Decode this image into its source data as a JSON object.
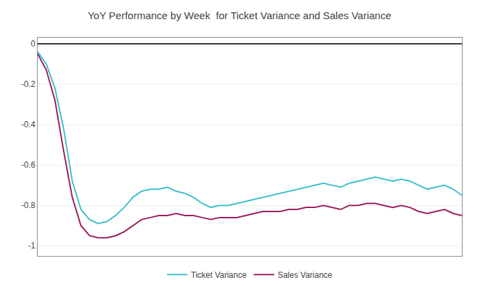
{
  "chart_data": {
    "type": "line",
    "title": "YoY Performance by Week  for Ticket Variance and Sales Variance",
    "categories": [
      null,
      null,
      null,
      null,
      null,
      null,
      null,
      null,
      null,
      null,
      null,
      null,
      null,
      null,
      null,
      null,
      null,
      null,
      null,
      null,
      null,
      null,
      null,
      null,
      null,
      null,
      null,
      null,
      null,
      null,
      null,
      null,
      null,
      null,
      null,
      null,
      null,
      null,
      null,
      null,
      null,
      null,
      null,
      null,
      null,
      null,
      null,
      null,
      null,
      null
    ],
    "series": [
      {
        "name": "Ticket Variance",
        "color": "#3BBFC8",
        "values": [
          -0.04,
          -0.1,
          -0.22,
          -0.42,
          -0.68,
          -0.82,
          -0.87,
          -0.89,
          -0.88,
          -0.85,
          -0.81,
          -0.76,
          -0.73,
          -0.72,
          -0.72,
          -0.71,
          -0.73,
          -0.74,
          -0.76,
          -0.79,
          -0.81,
          -0.8,
          -0.8,
          -0.79,
          -0.78,
          -0.77,
          -0.76,
          -0.75,
          -0.74,
          -0.73,
          -0.72,
          -0.71,
          -0.7,
          -0.69,
          -0.7,
          -0.71,
          -0.69,
          -0.68,
          -0.67,
          -0.66,
          -0.67,
          -0.68,
          -0.67,
          -0.68,
          -0.7,
          -0.72,
          -0.71,
          -0.7,
          -0.72,
          -0.75
        ]
      },
      {
        "name": "Sales Variance",
        "color": "#9B1A5A",
        "values": [
          -0.05,
          -0.13,
          -0.28,
          -0.53,
          -0.76,
          -0.9,
          -0.95,
          -0.96,
          -0.96,
          -0.95,
          -0.93,
          -0.9,
          -0.87,
          -0.86,
          -0.85,
          -0.85,
          -0.84,
          -0.85,
          -0.85,
          -0.86,
          -0.87,
          -0.86,
          -0.86,
          -0.86,
          -0.85,
          -0.84,
          -0.83,
          -0.83,
          -0.83,
          -0.82,
          -0.82,
          -0.81,
          -0.81,
          -0.8,
          -0.81,
          -0.82,
          -0.8,
          -0.8,
          -0.79,
          -0.79,
          -0.8,
          -0.81,
          -0.8,
          -0.81,
          -0.83,
          -0.84,
          -0.83,
          -0.82,
          -0.84,
          -0.85
        ]
      }
    ],
    "ylim": [
      -1.05,
      0.03
    ],
    "yticks": [
      0,
      -0.2,
      -0.4,
      -0.6,
      -0.8,
      -1
    ],
    "grid": true,
    "legend": "bottom",
    "tick_labels": "y"
  }
}
